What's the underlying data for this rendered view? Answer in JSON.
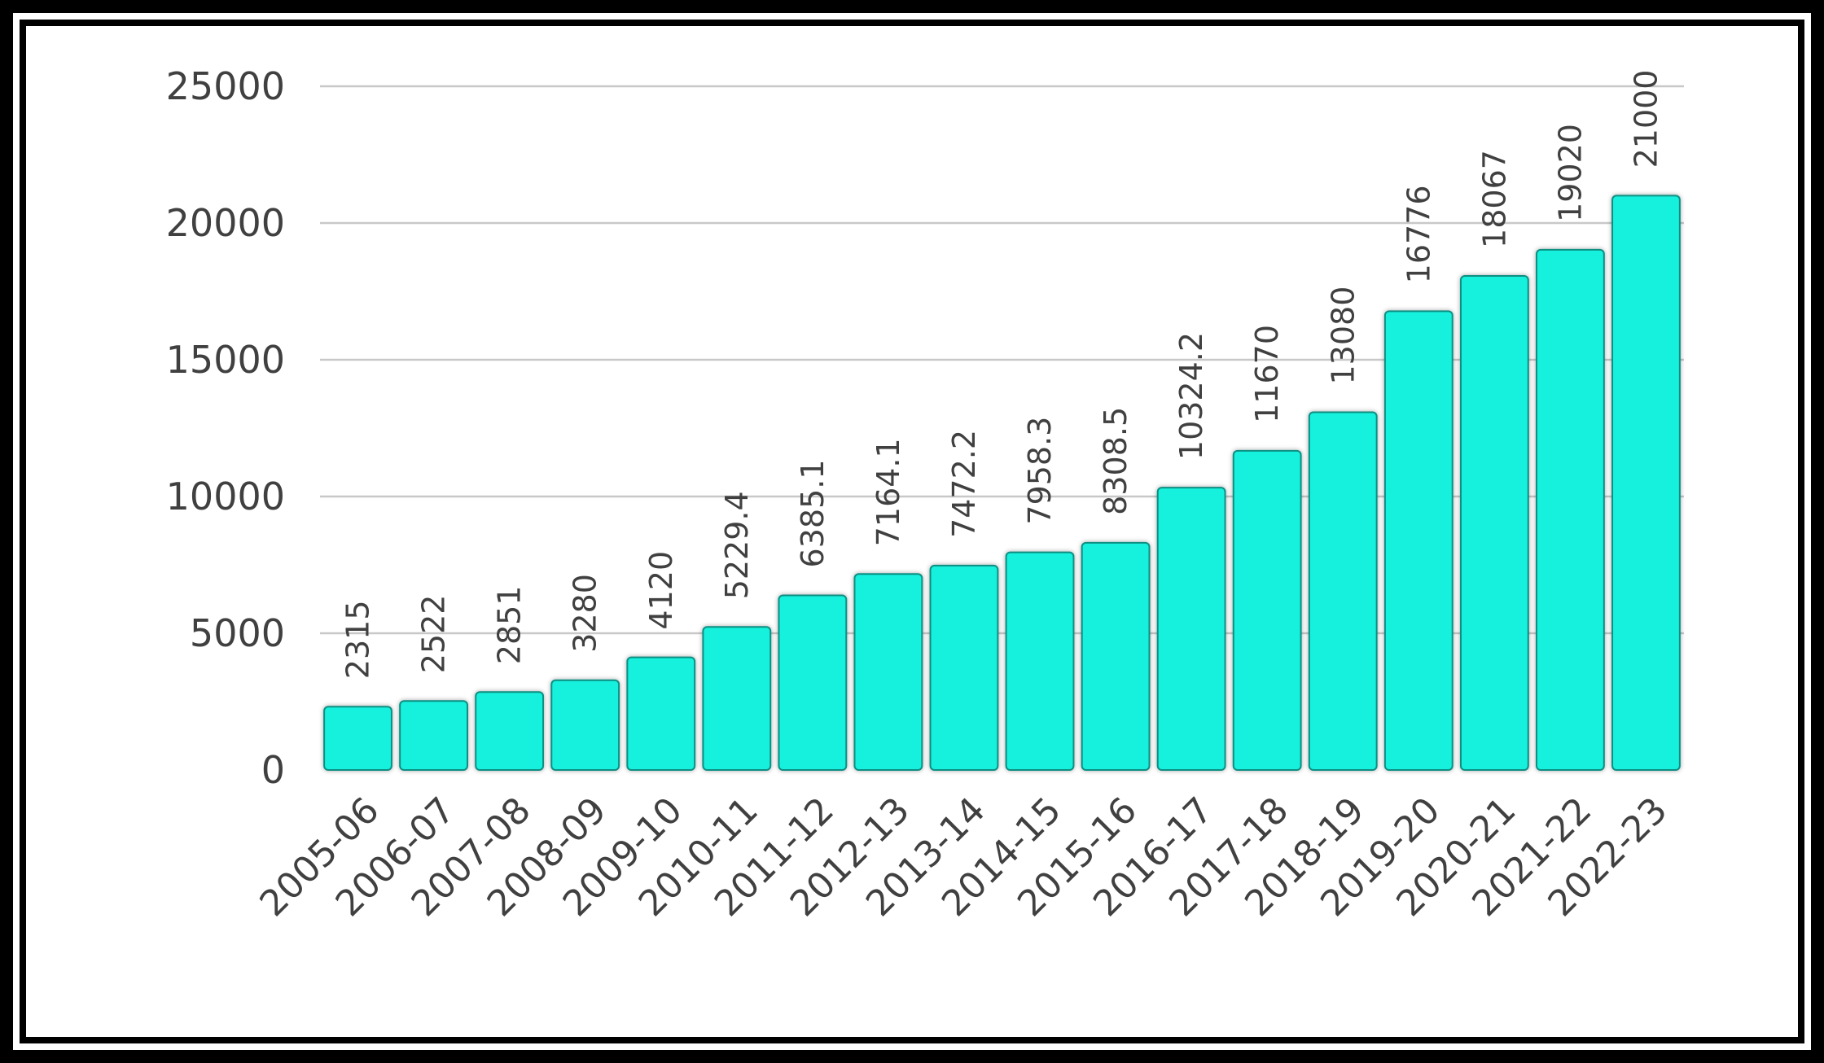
{
  "chart_data": {
    "type": "bar",
    "categories": [
      "2005-06",
      "2006-07",
      "2007-08",
      "2008-09",
      "2009-10",
      "2010-11",
      "2011-12",
      "2012-13",
      "2013-14",
      "2014-15",
      "2015-16",
      "2016-17",
      "2017-18",
      "2018-19",
      "2019-20",
      "2020-21",
      "2021-22",
      "2022-23"
    ],
    "values": [
      2315,
      2522,
      2851,
      3280,
      4120,
      5229.4,
      6385.1,
      7164.1,
      7472.2,
      7958.3,
      8308.5,
      10324.2,
      11670,
      13080,
      16776,
      18067,
      19020,
      21000
    ],
    "data_labels": [
      "2315",
      "2522",
      "2851",
      "3280",
      "4120",
      "5229.4",
      "6385.1",
      "7164.1",
      "7472.2",
      "7958.3",
      "8308.5",
      "10324.2",
      "11670",
      "13080",
      "16776",
      "18067",
      "19020",
      "21000"
    ],
    "title": "",
    "xlabel": "",
    "ylabel": "",
    "ylim": [
      0,
      25000
    ],
    "yticks": [
      0,
      5000,
      10000,
      15000,
      20000,
      25000
    ],
    "ytick_labels": [
      "0",
      "5000",
      "10000",
      "15000",
      "20000",
      "25000"
    ],
    "grid": true,
    "legend": "none",
    "bar_color": "#14F1DD",
    "bar_edge_color": "#0B8F82",
    "grid_color": "#C8C8C8",
    "text_color": "#404040"
  }
}
